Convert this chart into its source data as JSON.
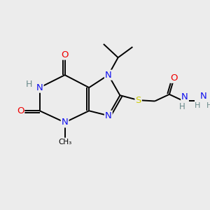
{
  "bg_color": "#ececec",
  "atom_colors": {
    "C": "#000000",
    "N": "#1010ee",
    "O": "#ee0000",
    "S": "#cccc00",
    "H": "#6a8a8a"
  },
  "figsize": [
    3.0,
    3.0
  ],
  "dpi": 100,
  "xlim": [
    0,
    10
  ],
  "ylim": [
    0,
    10
  ]
}
